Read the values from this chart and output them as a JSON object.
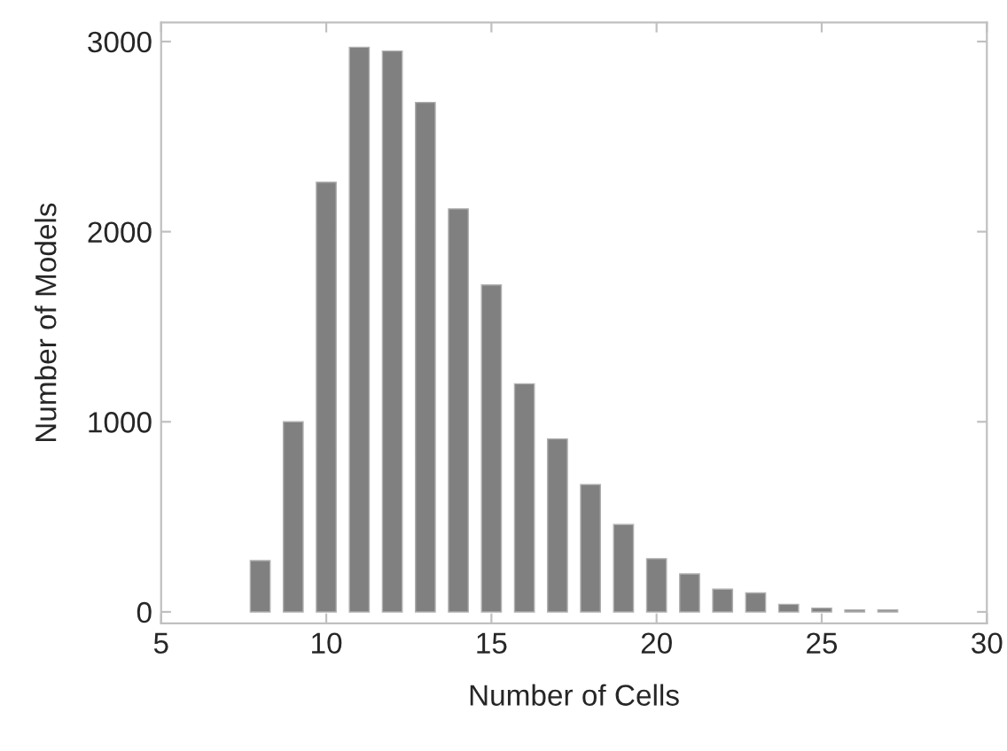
{
  "chart_data": {
    "type": "bar",
    "xlabel": "Number of Cells",
    "ylabel": "Number of Models",
    "x": [
      8,
      9,
      10,
      11,
      12,
      13,
      14,
      15,
      16,
      17,
      18,
      19,
      20,
      21,
      22,
      23,
      24,
      25,
      26,
      27
    ],
    "values": [
      270,
      1000,
      2260,
      2970,
      2950,
      2680,
      2120,
      1720,
      1200,
      910,
      670,
      460,
      280,
      200,
      120,
      100,
      40,
      20,
      10,
      10
    ],
    "color": "#808080",
    "xlim": [
      5,
      30
    ],
    "xticks": [
      5,
      10,
      15,
      20,
      25,
      30
    ],
    "ylim": [
      -60,
      3100
    ],
    "yticks": [
      0,
      1000,
      2000,
      3000
    ],
    "grid": false,
    "legend": false
  }
}
